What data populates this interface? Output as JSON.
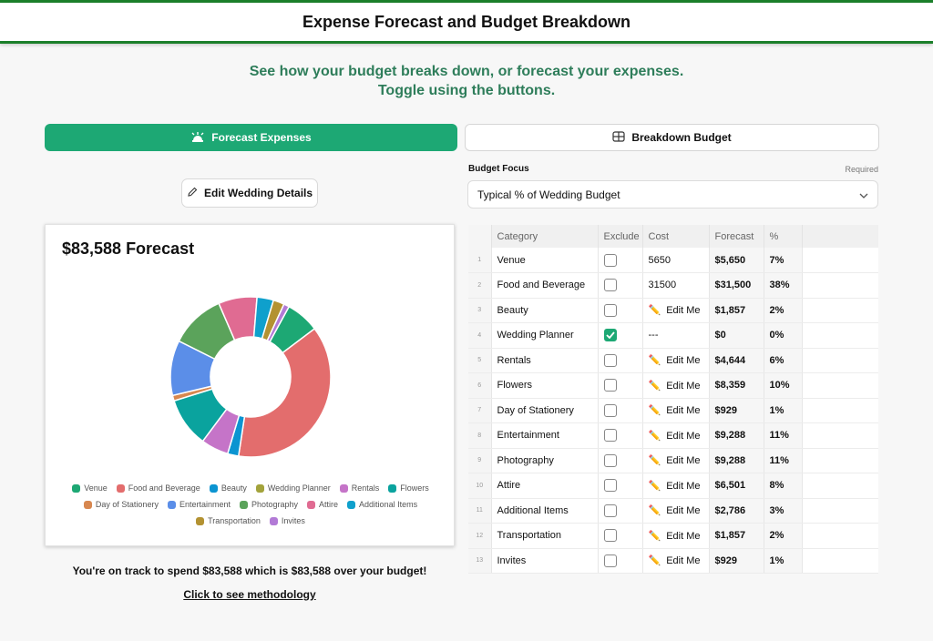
{
  "header": {
    "title": "Expense Forecast and Budget Breakdown"
  },
  "subtitle": {
    "line1": "See how your budget breaks down, or forecast your expenses.",
    "line2": "Toggle using the buttons."
  },
  "toggles": {
    "forecast_label": "Forecast Expenses",
    "breakdown_label": "Breakdown Budget"
  },
  "edit_details_label": "Edit Wedding Details",
  "budget_focus": {
    "label": "Budget Focus",
    "required": "Required",
    "selected": "Typical % of Wedding Budget"
  },
  "chart": {
    "title": "$83,588 Forecast"
  },
  "summary": "You're on track to spend $83,588 which is $83,588 over your budget!",
  "methodology_link": "Click to see methodology",
  "table": {
    "headers": {
      "category": "Category",
      "exclude": "Exclude",
      "cost": "Cost",
      "forecast": "Forecast",
      "pct": "%"
    },
    "rows": [
      {
        "idx": "1",
        "category": "Venue",
        "excluded": false,
        "cost": "5650",
        "editable": false,
        "forecast": "$5,650",
        "pct": "7%"
      },
      {
        "idx": "2",
        "category": "Food and Beverage",
        "excluded": false,
        "cost": "31500",
        "editable": false,
        "forecast": "$31,500",
        "pct": "38%"
      },
      {
        "idx": "3",
        "category": "Beauty",
        "excluded": false,
        "cost": "Edit Me",
        "editable": true,
        "forecast": "$1,857",
        "pct": "2%"
      },
      {
        "idx": "4",
        "category": "Wedding Planner",
        "excluded": true,
        "cost": "---",
        "editable": false,
        "forecast": "$0",
        "pct": "0%"
      },
      {
        "idx": "5",
        "category": "Rentals",
        "excluded": false,
        "cost": "Edit Me",
        "editable": true,
        "forecast": "$4,644",
        "pct": "6%"
      },
      {
        "idx": "6",
        "category": "Flowers",
        "excluded": false,
        "cost": "Edit Me",
        "editable": true,
        "forecast": "$8,359",
        "pct": "10%"
      },
      {
        "idx": "7",
        "category": "Day of Stationery",
        "excluded": false,
        "cost": "Edit Me",
        "editable": true,
        "forecast": "$929",
        "pct": "1%"
      },
      {
        "idx": "8",
        "category": "Entertainment",
        "excluded": false,
        "cost": "Edit Me",
        "editable": true,
        "forecast": "$9,288",
        "pct": "11%"
      },
      {
        "idx": "9",
        "category": "Photography",
        "excluded": false,
        "cost": "Edit Me",
        "editable": true,
        "forecast": "$9,288",
        "pct": "11%"
      },
      {
        "idx": "10",
        "category": "Attire",
        "excluded": false,
        "cost": "Edit Me",
        "editable": true,
        "forecast": "$6,501",
        "pct": "8%"
      },
      {
        "idx": "11",
        "category": "Additional Items",
        "excluded": false,
        "cost": "Edit Me",
        "editable": true,
        "forecast": "$2,786",
        "pct": "3%"
      },
      {
        "idx": "12",
        "category": "Transportation",
        "excluded": false,
        "cost": "Edit Me",
        "editable": true,
        "forecast": "$1,857",
        "pct": "2%"
      },
      {
        "idx": "13",
        "category": "Invites",
        "excluded": false,
        "cost": "Edit Me",
        "editable": true,
        "forecast": "$929",
        "pct": "1%"
      }
    ]
  },
  "chart_data": {
    "type": "pie",
    "title": "$83,588 Forecast",
    "legend_position": "bottom",
    "slices": [
      {
        "label": "Venue",
        "value": 5650,
        "color": "#1da874"
      },
      {
        "label": "Food and Beverage",
        "value": 31500,
        "color": "#e36d6d"
      },
      {
        "label": "Beauty",
        "value": 1857,
        "color": "#0b94d1"
      },
      {
        "label": "Wedding Planner",
        "value": 0,
        "color": "#a3a33b"
      },
      {
        "label": "Rentals",
        "value": 4644,
        "color": "#c574c8"
      },
      {
        "label": "Flowers",
        "value": 8359,
        "color": "#0aa39e"
      },
      {
        "label": "Day of Stationery",
        "value": 929,
        "color": "#d7874f"
      },
      {
        "label": "Entertainment",
        "value": 9288,
        "color": "#5b8ee8"
      },
      {
        "label": "Photography",
        "value": 9288,
        "color": "#5ba35b"
      },
      {
        "label": "Attire",
        "value": 6501,
        "color": "#e06b92"
      },
      {
        "label": "Additional Items",
        "value": 2786,
        "color": "#0fa0cc"
      },
      {
        "label": "Transportation",
        "value": 1857,
        "color": "#b39232"
      },
      {
        "label": "Invites",
        "value": 929,
        "color": "#b27ad6"
      }
    ]
  },
  "legend": [
    {
      "label": "Venue",
      "color": "#1da874"
    },
    {
      "label": "Food and Beverage",
      "color": "#e36d6d"
    },
    {
      "label": "Beauty",
      "color": "#0b94d1"
    },
    {
      "label": "Wedding Planner",
      "color": "#a3a33b"
    },
    {
      "label": "Rentals",
      "color": "#c574c8"
    },
    {
      "label": "Flowers",
      "color": "#0aa39e"
    },
    {
      "label": "Day of Stationery",
      "color": "#d7874f"
    },
    {
      "label": "Entertainment",
      "color": "#5b8ee8"
    },
    {
      "label": "Photography",
      "color": "#5ba35b"
    },
    {
      "label": "Attire",
      "color": "#e06b92"
    },
    {
      "label": "Additional Items",
      "color": "#0fa0cc"
    },
    {
      "label": "Transportation",
      "color": "#b39232"
    },
    {
      "label": "Invites",
      "color": "#b27ad6"
    }
  ],
  "colors": {
    "accent": "#1da874",
    "header_border": "#1b7f2a",
    "subtitle": "#2e7d5a"
  }
}
